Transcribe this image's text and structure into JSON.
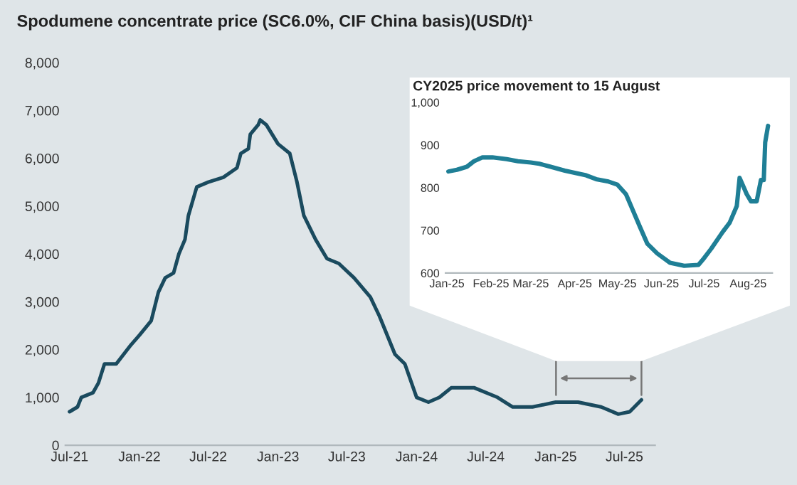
{
  "chart_data": [
    {
      "type": "line",
      "title": "Spodumene concentrate price (SC6.0%, CIF China basis)(USD/t)¹",
      "x": [
        "2021-07-01",
        "2021-07-22",
        "2021-08-01",
        "2021-09-01",
        "2021-09-15",
        "2021-10-01",
        "2021-11-01",
        "2021-12-10",
        "2022-01-01",
        "2022-02-01",
        "2022-02-20",
        "2022-03-10",
        "2022-04-01",
        "2022-04-15",
        "2022-05-01",
        "2022-05-10",
        "2022-06-01",
        "2022-07-01",
        "2022-08-10",
        "2022-09-15",
        "2022-09-25",
        "2022-10-15",
        "2022-10-20",
        "2022-11-10",
        "2022-11-15",
        "2022-12-01",
        "2023-01-01",
        "2023-02-01",
        "2023-02-20",
        "2023-03-10",
        "2023-04-10",
        "2023-05-10",
        "2023-06-10",
        "2023-07-20",
        "2023-09-01",
        "2023-09-25",
        "2023-11-05",
        "2023-12-01",
        "2024-01-01",
        "2024-02-01",
        "2024-03-01",
        "2024-04-01",
        "2024-05-01",
        "2024-06-01",
        "2024-08-01",
        "2024-09-10",
        "2024-11-01",
        "2025-01-01",
        "2025-03-01",
        "2025-05-01",
        "2025-06-15",
        "2025-07-15",
        "2025-08-15"
      ],
      "series": [
        {
          "color": "#1a4a5e",
          "values": [
            700,
            800,
            1000,
            1100,
            1300,
            1700,
            1700,
            2100,
            2300,
            2600,
            3200,
            3500,
            3600,
            4000,
            4300,
            4800,
            5400,
            5500,
            5600,
            5800,
            6100,
            6200,
            6500,
            6700,
            6800,
            6700,
            6300,
            6100,
            5500,
            4800,
            4300,
            3900,
            3800,
            3500,
            3100,
            2700,
            1900,
            1700,
            1000,
            900,
            1000,
            1200,
            1200,
            1200,
            1000,
            800,
            800,
            900,
            900,
            800,
            650,
            700,
            950
          ]
        }
      ],
      "xlim": [
        "2021-06-20",
        "2025-09-20"
      ],
      "xticks": [
        {
          "value": "2021-07-01",
          "label": "Jul-21"
        },
        {
          "value": "2022-01-01",
          "label": "Jan-22"
        },
        {
          "value": "2022-07-01",
          "label": "Jul-22"
        },
        {
          "value": "2023-01-01",
          "label": "Jan-23"
        },
        {
          "value": "2023-07-01",
          "label": "Jul-23"
        },
        {
          "value": "2024-01-01",
          "label": "Jan-24"
        },
        {
          "value": "2024-07-01",
          "label": "Jul-24"
        },
        {
          "value": "2025-01-01",
          "label": "Jan-25"
        },
        {
          "value": "2025-07-01",
          "label": "Jul-25"
        }
      ],
      "ylim": [
        0,
        8000
      ],
      "yticks": [
        0,
        {
          "value": 1000,
          "label": "1,000"
        },
        {
          "value": 2000,
          "label": "2,000"
        },
        {
          "value": 3000,
          "label": "3,000"
        },
        {
          "value": 4000,
          "label": "4,000"
        },
        {
          "value": 5000,
          "label": "5,000"
        },
        {
          "value": 6000,
          "label": "6,000"
        },
        {
          "value": 7000,
          "label": "7,000"
        },
        {
          "value": 8000,
          "label": "8,000"
        }
      ],
      "grid": false,
      "legend": false
    },
    {
      "type": "line",
      "title": "CY2025 price movement to 15 August",
      "x": [
        "2025-01-02",
        "2025-01-08",
        "2025-01-15",
        "2025-01-20",
        "2025-01-26",
        "2025-02-02",
        "2025-02-12",
        "2025-02-20",
        "2025-03-01",
        "2025-03-07",
        "2025-03-15",
        "2025-03-25",
        "2025-04-02",
        "2025-04-09",
        "2025-04-16",
        "2025-04-24",
        "2025-05-01",
        "2025-05-07",
        "2025-05-12",
        "2025-05-17",
        "2025-05-22",
        "2025-05-29",
        "2025-06-07",
        "2025-06-17",
        "2025-06-27",
        "2025-07-01",
        "2025-07-06",
        "2025-07-14",
        "2025-07-19",
        "2025-07-24",
        "2025-07-26",
        "2025-07-31",
        "2025-08-03",
        "2025-08-07",
        "2025-08-10",
        "2025-08-12",
        "2025-08-13",
        "2025-08-15"
      ],
      "series": [
        {
          "color": "#1f7f96",
          "values": [
            838,
            842,
            849,
            862,
            871,
            871,
            867,
            862,
            859,
            856,
            849,
            840,
            834,
            829,
            820,
            815,
            807,
            785,
            746,
            707,
            669,
            646,
            624,
            617,
            619,
            635,
            657,
            696,
            718,
            757,
            823,
            785,
            768,
            768,
            818,
            818,
            906,
            945
          ]
        }
      ],
      "xlim": [
        "2024-12-31",
        "2025-08-18"
      ],
      "xticks": [
        {
          "value": "2025-01-01",
          "label": "Jan-25"
        },
        {
          "value": "2025-02-01",
          "label": "Feb-25"
        },
        {
          "value": "2025-03-01",
          "label": "Mar-25"
        },
        {
          "value": "2025-04-01",
          "label": "Apr-25"
        },
        {
          "value": "2025-05-01",
          "label": "May-25"
        },
        {
          "value": "2025-06-01",
          "label": "Jun-25"
        },
        {
          "value": "2025-07-01",
          "label": "Jul-25"
        },
        {
          "value": "2025-08-01",
          "label": "Aug-25"
        }
      ],
      "ylim": [
        600,
        1000
      ],
      "yticks": [
        600,
        700,
        800,
        900,
        {
          "value": 1000,
          "label": "1,000"
        }
      ],
      "grid": false,
      "legend": false
    }
  ]
}
